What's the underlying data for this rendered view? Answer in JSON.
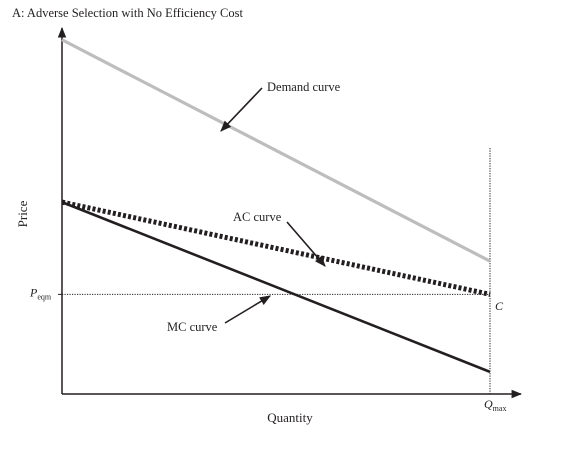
{
  "chart_data": {
    "type": "line",
    "title": "A: Adverse Selection with No Efficiency Cost",
    "xlabel": "Quantity",
    "ylabel": "Price",
    "ytick_label": {
      "main": "P",
      "sub": "eqm"
    },
    "xtick_label": {
      "main": "Q",
      "sub": "max"
    },
    "point_label": "C",
    "xlim": [
      0,
      100
    ],
    "ylim": [
      0,
      100
    ],
    "series": [
      {
        "name": "Demand curve",
        "style": "solid-gray",
        "x": [
          0,
          100
        ],
        "y": [
          96,
          36
        ]
      },
      {
        "name": "AC curve",
        "style": "dotted-black",
        "x": [
          0,
          100
        ],
        "y": [
          52,
          27
        ]
      },
      {
        "name": "MC curve",
        "style": "solid-black",
        "x": [
          0,
          100
        ],
        "y": [
          52,
          6
        ]
      }
    ],
    "reference_lines": {
      "y_eqm": 27,
      "x_max": 100
    },
    "annotations": [
      {
        "text": "Demand curve",
        "series": "Demand curve"
      },
      {
        "text": "AC curve",
        "series": "AC curve"
      },
      {
        "text": "MC curve",
        "series": "MC curve"
      }
    ],
    "colors": {
      "demand": "#bdbdbd",
      "ac": "#231f20",
      "mc": "#231f20",
      "axis": "#231f20"
    }
  }
}
